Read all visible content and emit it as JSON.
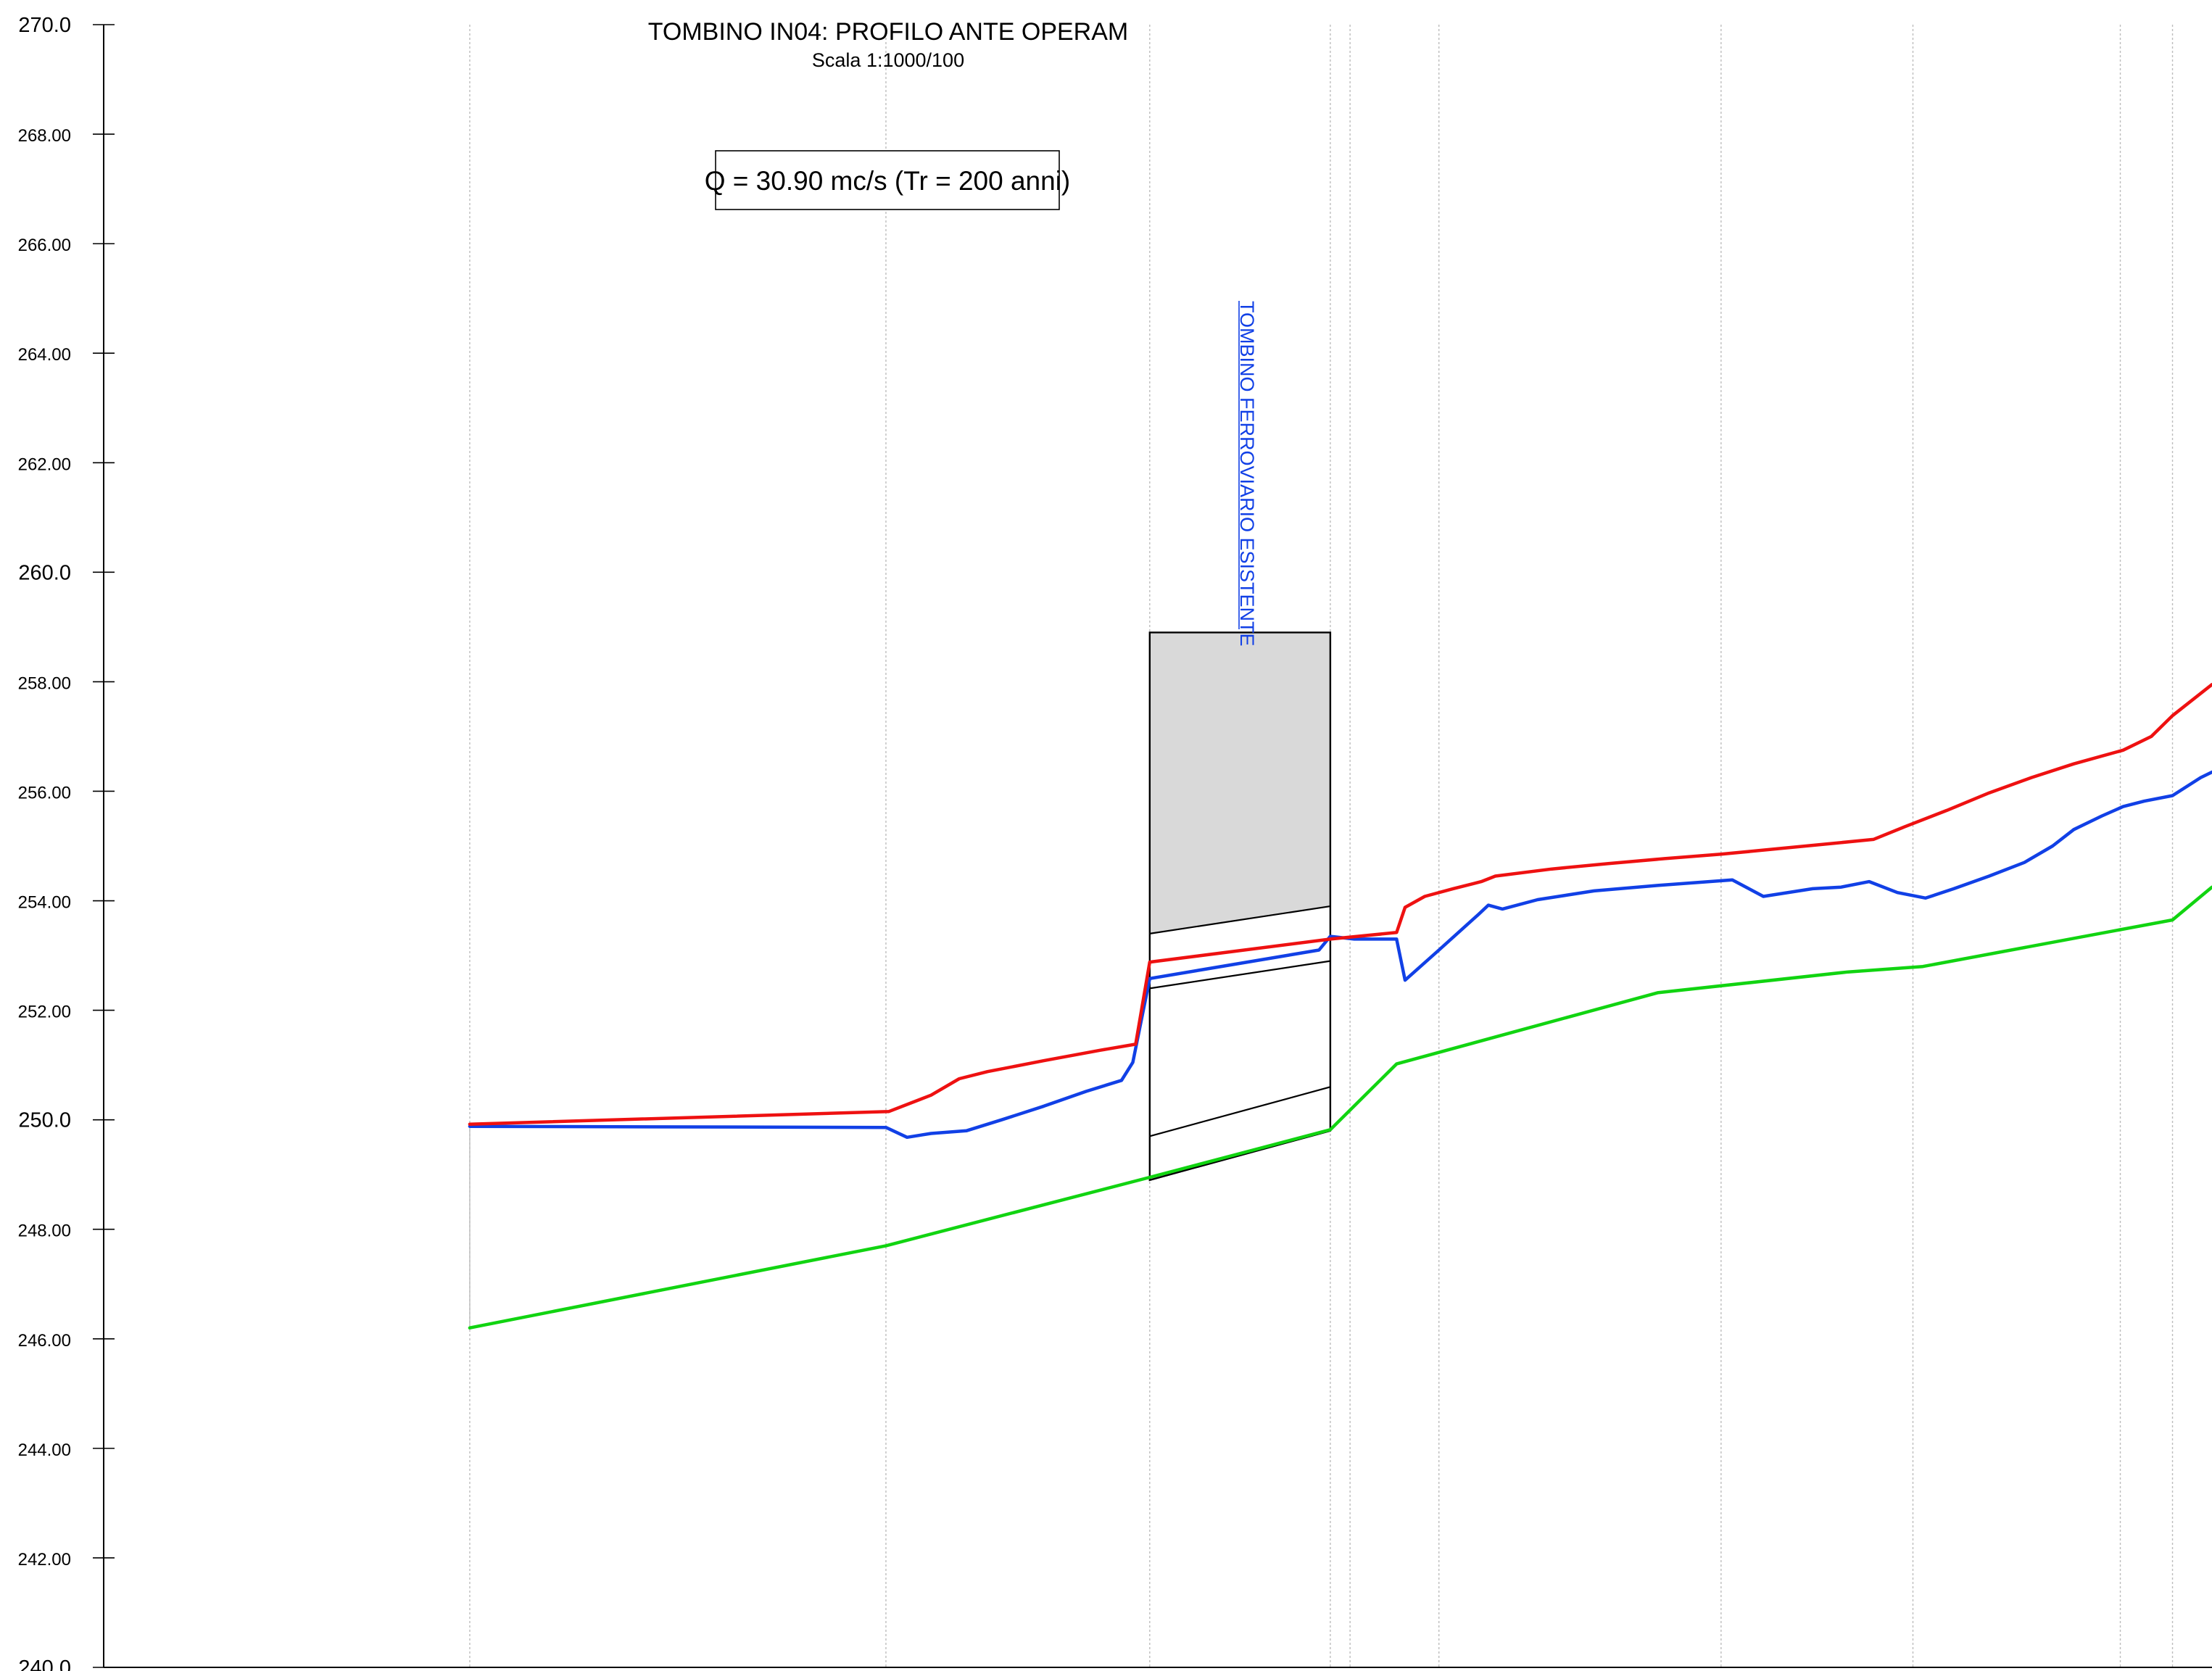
{
  "chart_data": {
    "type": "line",
    "title": "TOMBINO IN04: PROFILO ANTE OPERAM",
    "subtitle": "Scala 1:1000/100",
    "annotation": "Q = 30.90 mc/s (Tr = 200 anni)",
    "structure_label": "TOMBINO FERROVIARIO ESISTENTE",
    "ylim": [
      240,
      270
    ],
    "y_ticks": [
      240,
      242,
      244,
      246,
      248,
      250,
      252,
      254,
      256,
      258,
      260,
      262,
      264,
      266,
      268,
      270
    ],
    "y_tick_labels": [
      "240.0",
      "242.00",
      "244.00",
      "246.00",
      "248.00",
      "250.0",
      "252.00",
      "254.00",
      "256.00",
      "258.00",
      "260.0",
      "262.00",
      "264.00",
      "266.00",
      "268.00",
      "270.0"
    ],
    "x_range": [
      0,
      1568
    ],
    "section_stations": [
      333,
      628,
      815,
      943,
      957,
      1020,
      1220,
      1356,
      1503,
      1540
    ],
    "grid": "vertical dashed at sections",
    "legend": "none",
    "colors": {
      "energy": "#ee1111",
      "water": "#1140e6",
      "bed": "#11d411",
      "structure_fill": "#d9d9d9",
      "axis": "#000000",
      "grid": "#bdbdbd",
      "label_blue": "#1140e6"
    },
    "structure": {
      "x_start": 815,
      "x_end": 943,
      "top": 258.9,
      "deck_bottom_start": 253.4,
      "deck_bottom_end": 253.9,
      "lines": [
        {
          "start": 252.4,
          "end": 252.9
        },
        {
          "start": 249.7,
          "end": 250.6
        },
        {
          "start": 248.9,
          "end": 249.8
        }
      ]
    },
    "series": [
      {
        "key": "energy",
        "color": "#ee1111",
        "points": [
          [
            333,
            249.92
          ],
          [
            630,
            250.15
          ],
          [
            645,
            250.3
          ],
          [
            660,
            250.45
          ],
          [
            680,
            250.75
          ],
          [
            700,
            250.88
          ],
          [
            740,
            251.08
          ],
          [
            780,
            251.27
          ],
          [
            805,
            251.38
          ],
          [
            815,
            252.88
          ],
          [
            943,
            253.3
          ],
          [
            990,
            253.42
          ],
          [
            996,
            253.88
          ],
          [
            1010,
            254.08
          ],
          [
            1030,
            254.22
          ],
          [
            1050,
            254.35
          ],
          [
            1060,
            254.45
          ],
          [
            1100,
            254.58
          ],
          [
            1140,
            254.68
          ],
          [
            1180,
            254.77
          ],
          [
            1220,
            254.85
          ],
          [
            1260,
            254.95
          ],
          [
            1300,
            255.05
          ],
          [
            1328,
            255.12
          ],
          [
            1350,
            255.35
          ],
          [
            1380,
            255.65
          ],
          [
            1410,
            255.97
          ],
          [
            1440,
            256.25
          ],
          [
            1470,
            256.5
          ],
          [
            1505,
            256.75
          ],
          [
            1525,
            257.0
          ],
          [
            1540,
            257.38
          ],
          [
            1568,
            257.95
          ]
        ]
      },
      {
        "key": "water",
        "color": "#1140e6",
        "points": [
          [
            333,
            249.88
          ],
          [
            628,
            249.86
          ],
          [
            643,
            249.68
          ],
          [
            660,
            249.75
          ],
          [
            685,
            249.8
          ],
          [
            710,
            250.0
          ],
          [
            740,
            250.25
          ],
          [
            770,
            250.52
          ],
          [
            795,
            250.72
          ],
          [
            803,
            251.05
          ],
          [
            815,
            252.58
          ],
          [
            935,
            253.1
          ],
          [
            943,
            253.35
          ],
          [
            960,
            253.3
          ],
          [
            990,
            253.3
          ],
          [
            996,
            252.55
          ],
          [
            1020,
            253.1
          ],
          [
            1048,
            253.75
          ],
          [
            1055,
            253.92
          ],
          [
            1065,
            253.85
          ],
          [
            1090,
            254.02
          ],
          [
            1130,
            254.18
          ],
          [
            1175,
            254.28
          ],
          [
            1228,
            254.38
          ],
          [
            1250,
            254.08
          ],
          [
            1285,
            254.22
          ],
          [
            1305,
            254.25
          ],
          [
            1325,
            254.35
          ],
          [
            1345,
            254.15
          ],
          [
            1365,
            254.05
          ],
          [
            1385,
            254.22
          ],
          [
            1410,
            254.45
          ],
          [
            1435,
            254.7
          ],
          [
            1455,
            255.0
          ],
          [
            1470,
            255.3
          ],
          [
            1490,
            255.55
          ],
          [
            1505,
            255.72
          ],
          [
            1520,
            255.82
          ],
          [
            1540,
            255.92
          ],
          [
            1560,
            256.25
          ],
          [
            1568,
            256.35
          ]
        ]
      },
      {
        "key": "bed",
        "color": "#11d411",
        "points": [
          [
            333,
            246.2
          ],
          [
            628,
            247.7
          ],
          [
            815,
            248.95
          ],
          [
            943,
            249.82
          ],
          [
            990,
            251.02
          ],
          [
            1175,
            252.32
          ],
          [
            1310,
            252.7
          ],
          [
            1363,
            252.8
          ],
          [
            1540,
            253.65
          ],
          [
            1568,
            254.25
          ]
        ]
      }
    ]
  }
}
